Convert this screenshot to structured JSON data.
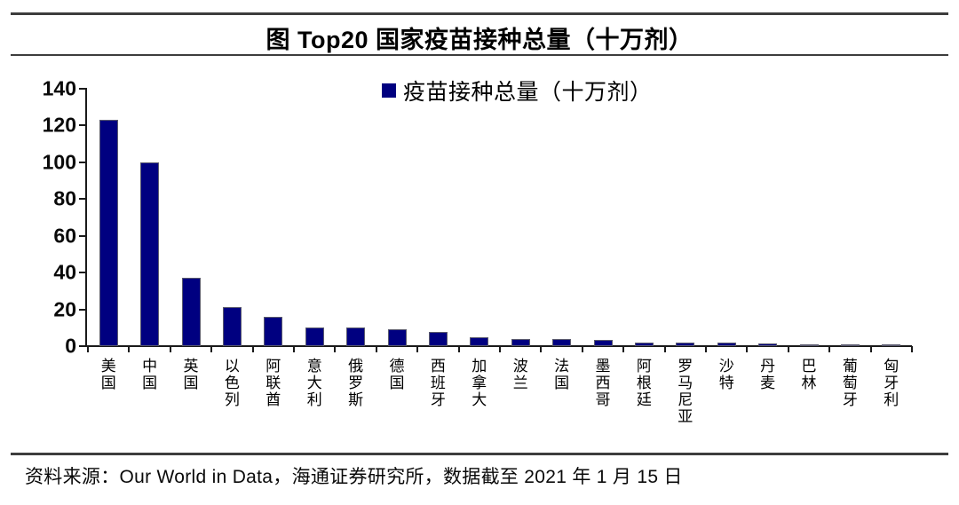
{
  "title": "图 Top20 国家疫苗接种总量（十万剂）",
  "legend": {
    "label": "疫苗接种总量（十万剂）"
  },
  "source_note": "资料来源：Our World in Data，海通证券研究所，数据截至 2021 年 1 月 15 日",
  "colors": {
    "bar_fill": "#000080",
    "bar_border": "#5a5a6e",
    "axis": "#1a1a1a",
    "rule": "#3d3d3d",
    "background": "#ffffff"
  },
  "chart_data": {
    "type": "bar",
    "title": "图 Top20 国家疫苗接种总量（十万剂）",
    "legend_entries": [
      "疫苗接种总量（十万剂）"
    ],
    "legend_position": "top-center",
    "categories": [
      "美国",
      "中国",
      "英国",
      "以色列",
      "阿联酋",
      "意大利",
      "俄罗斯",
      "德国",
      "西班牙",
      "加拿大",
      "波兰",
      "法国",
      "墨西哥",
      "阿根廷",
      "罗马尼亚",
      "沙特",
      "丹麦",
      "巴林",
      "葡萄牙",
      "匈牙利"
    ],
    "values": [
      123,
      100,
      37,
      21,
      16,
      10,
      10,
      9.3,
      7.5,
      4.6,
      4,
      3.7,
      3.3,
      2,
      1.7,
      2.1,
      1.6,
      1,
      1,
      1.1
    ],
    "xlabel": "",
    "ylabel": "",
    "ylim": [
      0,
      140
    ],
    "yticks": [
      0,
      20,
      40,
      60,
      80,
      100,
      120,
      140
    ],
    "grid": false,
    "bar_color": "#000080"
  }
}
